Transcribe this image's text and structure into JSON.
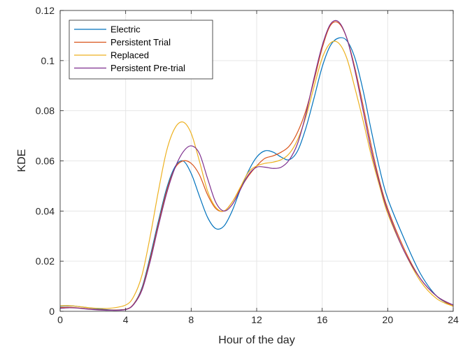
{
  "chart_data": {
    "type": "line",
    "xlabel": "Hour of the day",
    "ylabel": "KDE",
    "xlim": [
      0,
      24
    ],
    "ylim": [
      0,
      0.12
    ],
    "xticks": [
      0,
      4,
      8,
      12,
      16,
      20,
      24
    ],
    "yticks": [
      0,
      0.02,
      0.04,
      0.06,
      0.08,
      0.1,
      0.12
    ],
    "xtick_labels": [
      "0",
      "4",
      "8",
      "12",
      "16",
      "20",
      "24"
    ],
    "ytick_labels": [
      "0",
      "0.02",
      "0.04",
      "0.06",
      "0.08",
      "0.1",
      "0.12"
    ],
    "grid": true,
    "legend_position": "top-left",
    "series": [
      {
        "name": "Electric",
        "color": "#0072BD",
        "x": [
          0,
          0.5,
          1,
          2,
          3,
          4,
          4.5,
          5,
          5.5,
          6,
          6.5,
          7,
          7.5,
          8,
          8.5,
          9,
          9.5,
          10,
          10.5,
          11,
          11.5,
          12,
          12.5,
          13,
          13.5,
          14,
          14.5,
          15,
          15.5,
          16,
          16.5,
          17,
          17.5,
          18,
          18.5,
          19,
          19.5,
          20,
          21,
          22,
          23,
          24
        ],
        "y": [
          0.002,
          0.0022,
          0.002,
          0.0012,
          0.0006,
          0.0008,
          0.003,
          0.0095,
          0.022,
          0.036,
          0.049,
          0.0575,
          0.06,
          0.055,
          0.046,
          0.0375,
          0.033,
          0.034,
          0.04,
          0.0485,
          0.056,
          0.0615,
          0.064,
          0.0635,
          0.0615,
          0.0605,
          0.064,
          0.073,
          0.085,
          0.0975,
          0.106,
          0.109,
          0.108,
          0.101,
          0.088,
          0.072,
          0.057,
          0.045,
          0.029,
          0.015,
          0.006,
          0.002
        ]
      },
      {
        "name": "Persistent Trial",
        "color": "#D95319",
        "x": [
          0,
          0.5,
          1,
          2,
          3,
          4,
          4.5,
          5,
          5.5,
          6,
          6.5,
          7,
          7.5,
          8,
          8.5,
          9,
          9.5,
          10,
          10.5,
          11,
          11.5,
          12,
          12.5,
          13,
          13.5,
          14,
          14.5,
          15,
          15.5,
          16,
          16.5,
          17,
          17.5,
          18,
          18.5,
          19,
          19.5,
          20,
          21,
          22,
          23,
          24
        ],
        "y": [
          0.0015,
          0.0016,
          0.0014,
          0.0008,
          0.0005,
          0.0008,
          0.003,
          0.009,
          0.021,
          0.035,
          0.048,
          0.057,
          0.06,
          0.059,
          0.0545,
          0.0465,
          0.041,
          0.04,
          0.0435,
          0.049,
          0.054,
          0.058,
          0.061,
          0.062,
          0.0635,
          0.066,
          0.0715,
          0.08,
          0.092,
          0.105,
          0.114,
          0.115,
          0.109,
          0.097,
          0.082,
          0.066,
          0.052,
          0.041,
          0.025,
          0.013,
          0.006,
          0.002
        ]
      },
      {
        "name": "Replaced",
        "color": "#EDB120",
        "x": [
          0,
          0.5,
          1,
          2,
          3,
          4,
          4.5,
          5,
          5.5,
          6,
          6.5,
          7,
          7.5,
          8,
          8.5,
          9,
          9.5,
          10,
          10.5,
          11,
          11.5,
          12,
          12.5,
          13,
          13.5,
          14,
          14.5,
          15,
          15.5,
          16,
          16.5,
          17,
          17.5,
          18,
          18.5,
          19,
          19.5,
          20,
          21,
          22,
          23,
          24
        ],
        "y": [
          0.0022,
          0.0023,
          0.002,
          0.0013,
          0.0012,
          0.0025,
          0.006,
          0.0145,
          0.03,
          0.048,
          0.064,
          0.073,
          0.0755,
          0.071,
          0.06,
          0.048,
          0.0415,
          0.04,
          0.0435,
          0.0495,
          0.0555,
          0.058,
          0.059,
          0.0595,
          0.0605,
          0.063,
          0.0685,
          0.0775,
          0.0895,
          0.101,
          0.107,
          0.107,
          0.101,
          0.089,
          0.076,
          0.062,
          0.05,
          0.039,
          0.024,
          0.012,
          0.005,
          0.002
        ]
      },
      {
        "name": "Persistent Pre-trial",
        "color": "#7E2F8E",
        "x": [
          0,
          0.5,
          1,
          2,
          3,
          4,
          4.5,
          5,
          5.5,
          6,
          6.5,
          7,
          7.5,
          8,
          8.5,
          9,
          9.5,
          10,
          10.5,
          11,
          11.5,
          12,
          12.5,
          13,
          13.5,
          14,
          14.5,
          15,
          15.5,
          16,
          16.5,
          17,
          17.5,
          18,
          18.5,
          19,
          19.5,
          20,
          21,
          22,
          23,
          24
        ],
        "y": [
          0.0012,
          0.0014,
          0.0013,
          0.0007,
          0.0004,
          0.0007,
          0.0028,
          0.0085,
          0.02,
          0.034,
          0.047,
          0.057,
          0.0635,
          0.066,
          0.063,
          0.053,
          0.0435,
          0.04,
          0.0425,
          0.0485,
          0.0545,
          0.0575,
          0.0575,
          0.057,
          0.0575,
          0.0605,
          0.067,
          0.0785,
          0.093,
          0.106,
          0.1145,
          0.1155,
          0.109,
          0.096,
          0.08,
          0.064,
          0.051,
          0.04,
          0.024,
          0.013,
          0.006,
          0.0025
        ]
      }
    ]
  }
}
